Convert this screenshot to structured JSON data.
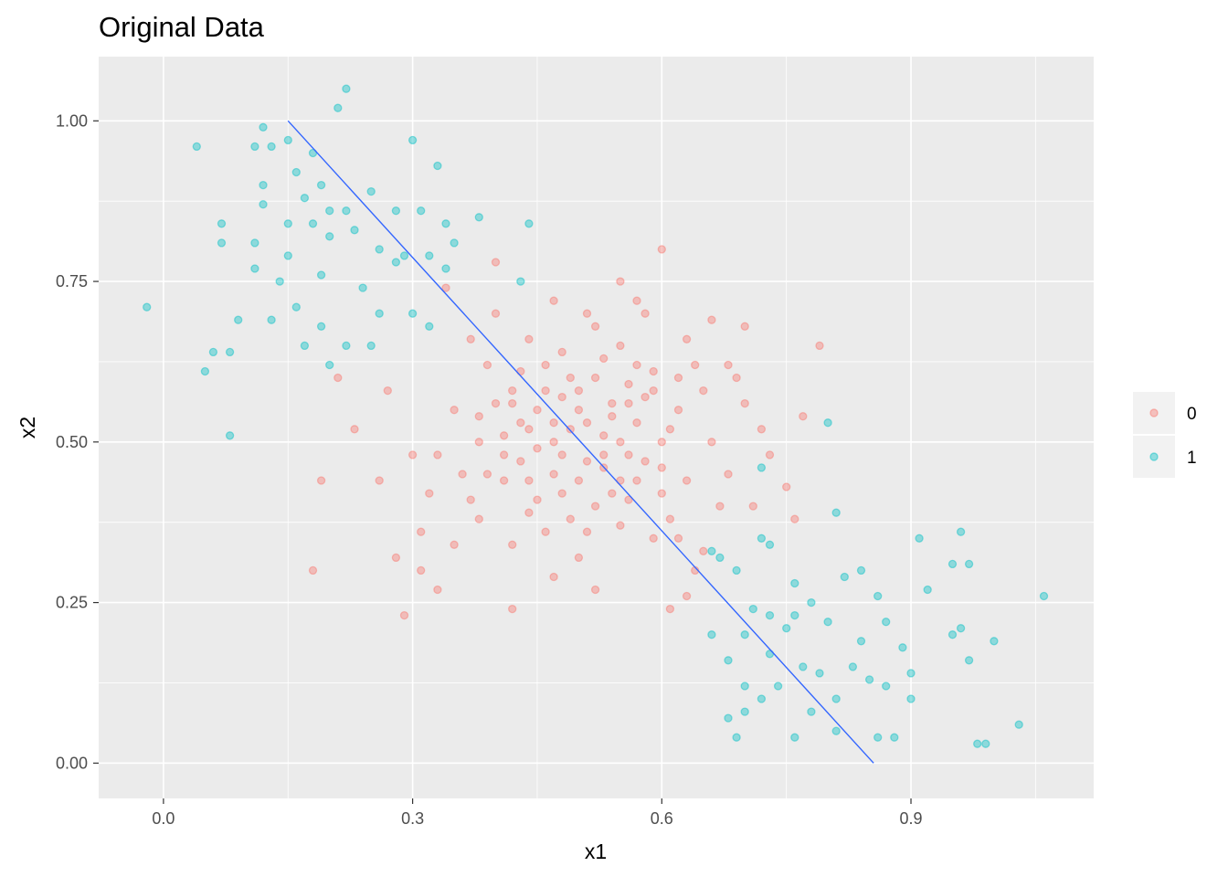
{
  "chart_data": {
    "type": "scatter",
    "title": "Original Data",
    "xlabel": "x1",
    "ylabel": "x2",
    "xlim": [
      -0.078,
      1.12
    ],
    "ylim": [
      -0.055,
      1.1
    ],
    "x_ticks": [
      0.0,
      0.3,
      0.6,
      0.9
    ],
    "x_tick_labels": [
      "0.0",
      "0.3",
      "0.6",
      "0.9"
    ],
    "y_ticks": [
      0.0,
      0.25,
      0.5,
      0.75,
      1.0
    ],
    "y_tick_labels": [
      "0.00",
      "0.25",
      "0.50",
      "0.75",
      "1.00"
    ],
    "grid": true,
    "legend_position": "right",
    "legend_labels": [
      "0",
      "1"
    ],
    "colors": {
      "class_0": "#F8766D",
      "class_1": "#00BFC4",
      "line": "#3366FF",
      "panel": "#EBEBEB",
      "grid": "#FFFFFF"
    },
    "series": [
      {
        "name": "0",
        "color": "#F8766D",
        "points": [
          [
            0.44,
            0.52
          ],
          [
            0.5,
            0.55
          ],
          [
            0.56,
            0.48
          ],
          [
            0.47,
            0.45
          ],
          [
            0.52,
            0.6
          ],
          [
            0.58,
            0.57
          ],
          [
            0.42,
            0.58
          ],
          [
            0.54,
            0.42
          ],
          [
            0.46,
            0.62
          ],
          [
            0.6,
            0.5
          ],
          [
            0.38,
            0.5
          ],
          [
            0.49,
            0.38
          ],
          [
            0.63,
            0.44
          ],
          [
            0.41,
            0.44
          ],
          [
            0.55,
            0.65
          ],
          [
            0.51,
            0.47
          ],
          [
            0.45,
            0.55
          ],
          [
            0.57,
            0.53
          ],
          [
            0.43,
            0.47
          ],
          [
            0.48,
            0.57
          ],
          [
            0.53,
            0.51
          ],
          [
            0.59,
            0.61
          ],
          [
            0.4,
            0.56
          ],
          [
            0.62,
            0.55
          ],
          [
            0.36,
            0.45
          ],
          [
            0.66,
            0.5
          ],
          [
            0.5,
            0.32
          ],
          [
            0.46,
            0.36
          ],
          [
            0.55,
            0.37
          ],
          [
            0.61,
            0.38
          ],
          [
            0.39,
            0.62
          ],
          [
            0.44,
            0.66
          ],
          [
            0.52,
            0.68
          ],
          [
            0.58,
            0.7
          ],
          [
            0.64,
            0.62
          ],
          [
            0.35,
            0.55
          ],
          [
            0.33,
            0.48
          ],
          [
            0.68,
            0.45
          ],
          [
            0.7,
            0.56
          ],
          [
            0.42,
            0.34
          ],
          [
            0.48,
            0.42
          ],
          [
            0.53,
            0.46
          ],
          [
            0.47,
            0.5
          ],
          [
            0.51,
            0.53
          ],
          [
            0.45,
            0.49
          ],
          [
            0.56,
            0.59
          ],
          [
            0.6,
            0.46
          ],
          [
            0.43,
            0.53
          ],
          [
            0.49,
            0.6
          ],
          [
            0.54,
            0.56
          ],
          [
            0.57,
            0.44
          ],
          [
            0.41,
            0.51
          ],
          [
            0.37,
            0.41
          ],
          [
            0.65,
            0.58
          ],
          [
            0.59,
            0.35
          ],
          [
            0.47,
            0.29
          ],
          [
            0.52,
            0.27
          ],
          [
            0.57,
            0.72
          ],
          [
            0.55,
            0.75
          ],
          [
            0.6,
            0.8
          ],
          [
            0.4,
            0.78
          ],
          [
            0.34,
            0.74
          ],
          [
            0.3,
            0.48
          ],
          [
            0.31,
            0.36
          ],
          [
            0.29,
            0.23
          ],
          [
            0.27,
            0.58
          ],
          [
            0.26,
            0.44
          ],
          [
            0.21,
            0.6
          ],
          [
            0.23,
            0.52
          ],
          [
            0.18,
            0.3
          ],
          [
            0.19,
            0.44
          ],
          [
            0.28,
            0.32
          ],
          [
            0.33,
            0.27
          ],
          [
            0.42,
            0.24
          ],
          [
            0.71,
            0.4
          ],
          [
            0.73,
            0.48
          ],
          [
            0.75,
            0.43
          ],
          [
            0.77,
            0.54
          ],
          [
            0.79,
            0.65
          ],
          [
            0.76,
            0.38
          ],
          [
            0.69,
            0.6
          ],
          [
            0.72,
            0.52
          ],
          [
            0.67,
            0.4
          ],
          [
            0.65,
            0.33
          ],
          [
            0.63,
            0.26
          ],
          [
            0.61,
            0.24
          ],
          [
            0.64,
            0.3
          ],
          [
            0.62,
            0.35
          ],
          [
            0.68,
            0.62
          ],
          [
            0.7,
            0.68
          ],
          [
            0.66,
            0.69
          ],
          [
            0.63,
            0.66
          ],
          [
            0.38,
            0.38
          ],
          [
            0.35,
            0.34
          ],
          [
            0.32,
            0.42
          ],
          [
            0.31,
            0.3
          ],
          [
            0.37,
            0.66
          ],
          [
            0.4,
            0.7
          ],
          [
            0.47,
            0.72
          ],
          [
            0.51,
            0.7
          ],
          [
            0.44,
            0.44
          ],
          [
            0.5,
            0.44
          ],
          [
            0.55,
            0.5
          ],
          [
            0.46,
            0.58
          ],
          [
            0.53,
            0.63
          ],
          [
            0.58,
            0.47
          ],
          [
            0.42,
            0.56
          ],
          [
            0.48,
            0.48
          ],
          [
            0.52,
            0.4
          ],
          [
            0.56,
            0.41
          ],
          [
            0.45,
            0.41
          ],
          [
            0.49,
            0.52
          ],
          [
            0.54,
            0.54
          ],
          [
            0.59,
            0.58
          ],
          [
            0.41,
            0.48
          ],
          [
            0.43,
            0.61
          ],
          [
            0.57,
            0.62
          ],
          [
            0.61,
            0.52
          ],
          [
            0.39,
            0.45
          ],
          [
            0.6,
            0.42
          ],
          [
            0.5,
            0.58
          ],
          [
            0.47,
            0.53
          ],
          [
            0.53,
            0.48
          ],
          [
            0.44,
            0.39
          ],
          [
            0.56,
            0.56
          ],
          [
            0.62,
            0.6
          ],
          [
            0.38,
            0.54
          ],
          [
            0.48,
            0.64
          ],
          [
            0.51,
            0.36
          ],
          [
            0.55,
            0.44
          ]
        ]
      },
      {
        "name": "1",
        "color": "#00BFC4",
        "points": [
          [
            0.04,
            0.96
          ],
          [
            0.12,
            0.99
          ],
          [
            0.21,
            1.02
          ],
          [
            0.22,
            1.05
          ],
          [
            0.3,
            0.97
          ],
          [
            0.33,
            0.93
          ],
          [
            0.15,
            0.97
          ],
          [
            0.18,
            0.95
          ],
          [
            0.11,
            0.96
          ],
          [
            0.13,
            0.96
          ],
          [
            0.16,
            0.92
          ],
          [
            0.19,
            0.9
          ],
          [
            0.12,
            0.9
          ],
          [
            0.17,
            0.88
          ],
          [
            0.22,
            0.86
          ],
          [
            0.25,
            0.89
          ],
          [
            0.28,
            0.86
          ],
          [
            0.31,
            0.86
          ],
          [
            0.34,
            0.84
          ],
          [
            0.38,
            0.85
          ],
          [
            0.44,
            0.84
          ],
          [
            0.07,
            0.84
          ],
          [
            0.12,
            0.87
          ],
          [
            0.15,
            0.84
          ],
          [
            0.2,
            0.82
          ],
          [
            0.23,
            0.83
          ],
          [
            0.26,
            0.8
          ],
          [
            0.29,
            0.79
          ],
          [
            0.32,
            0.79
          ],
          [
            0.35,
            0.81
          ],
          [
            0.07,
            0.81
          ],
          [
            0.11,
            0.81
          ],
          [
            0.15,
            0.79
          ],
          [
            0.19,
            0.76
          ],
          [
            0.24,
            0.74
          ],
          [
            0.28,
            0.78
          ],
          [
            0.34,
            0.77
          ],
          [
            0.43,
            0.75
          ],
          [
            -0.02,
            0.71
          ],
          [
            0.06,
            0.64
          ],
          [
            0.08,
            0.64
          ],
          [
            0.09,
            0.69
          ],
          [
            0.13,
            0.69
          ],
          [
            0.16,
            0.71
          ],
          [
            0.19,
            0.68
          ],
          [
            0.22,
            0.65
          ],
          [
            0.25,
            0.65
          ],
          [
            0.3,
            0.7
          ],
          [
            0.32,
            0.68
          ],
          [
            0.05,
            0.61
          ],
          [
            0.08,
            0.51
          ],
          [
            0.11,
            0.77
          ],
          [
            0.14,
            0.75
          ],
          [
            0.17,
            0.65
          ],
          [
            0.2,
            0.62
          ],
          [
            0.26,
            0.7
          ],
          [
            0.2,
            0.86
          ],
          [
            0.18,
            0.84
          ],
          [
            0.67,
            0.32
          ],
          [
            0.72,
            0.35
          ],
          [
            0.73,
            0.34
          ],
          [
            0.66,
            0.33
          ],
          [
            0.69,
            0.3
          ],
          [
            0.72,
            0.46
          ],
          [
            0.8,
            0.53
          ],
          [
            0.81,
            0.39
          ],
          [
            0.66,
            0.2
          ],
          [
            0.68,
            0.16
          ],
          [
            0.7,
            0.2
          ],
          [
            0.71,
            0.24
          ],
          [
            0.73,
            0.23
          ],
          [
            0.75,
            0.21
          ],
          [
            0.76,
            0.28
          ],
          [
            0.78,
            0.25
          ],
          [
            0.8,
            0.22
          ],
          [
            0.82,
            0.29
          ],
          [
            0.84,
            0.3
          ],
          [
            0.86,
            0.26
          ],
          [
            0.87,
            0.22
          ],
          [
            0.89,
            0.18
          ],
          [
            0.83,
            0.15
          ],
          [
            0.85,
            0.13
          ],
          [
            0.87,
            0.12
          ],
          [
            0.9,
            0.14
          ],
          [
            0.77,
            0.15
          ],
          [
            0.79,
            0.14
          ],
          [
            0.81,
            0.1
          ],
          [
            0.74,
            0.12
          ],
          [
            0.72,
            0.1
          ],
          [
            0.7,
            0.12
          ],
          [
            0.68,
            0.07
          ],
          [
            0.69,
            0.04
          ],
          [
            0.76,
            0.04
          ],
          [
            0.81,
            0.05
          ],
          [
            0.86,
            0.04
          ],
          [
            0.88,
            0.04
          ],
          [
            0.9,
            0.1
          ],
          [
            0.91,
            0.35
          ],
          [
            0.95,
            0.31
          ],
          [
            0.96,
            0.36
          ],
          [
            0.97,
            0.31
          ],
          [
            0.96,
            0.21
          ],
          [
            0.97,
            0.16
          ],
          [
            1.0,
            0.19
          ],
          [
            1.06,
            0.26
          ],
          [
            1.03,
            0.06
          ],
          [
            0.98,
            0.03
          ],
          [
            0.99,
            0.03
          ],
          [
            0.95,
            0.2
          ],
          [
            0.84,
            0.19
          ],
          [
            0.92,
            0.27
          ],
          [
            0.78,
            0.08
          ],
          [
            0.7,
            0.08
          ],
          [
            0.76,
            0.23
          ],
          [
            0.73,
            0.17
          ]
        ]
      }
    ],
    "line": {
      "x": [
        0.15,
        0.855
      ],
      "y": [
        1.0,
        0.0
      ]
    }
  }
}
